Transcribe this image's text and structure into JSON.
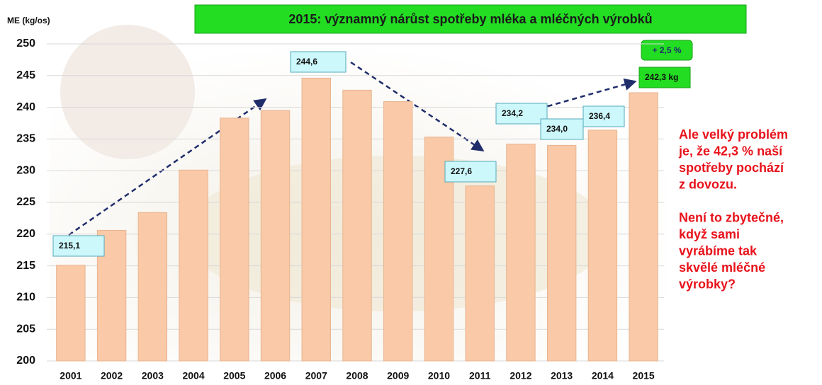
{
  "chart_data": {
    "type": "bar",
    "title": "2015:  významný nárůst spotřeby mléka a mléčných výrobků",
    "y_label": "ME (kg/os)",
    "categories": [
      "2001",
      "2002",
      "2003",
      "2004",
      "2005",
      "2006",
      "2007",
      "2008",
      "2009",
      "2010",
      "2011",
      "2012",
      "2013",
      "2014",
      "2015"
    ],
    "values": [
      215.1,
      220.6,
      223.4,
      230.1,
      238.3,
      239.5,
      244.6,
      242.7,
      240.9,
      235.3,
      227.6,
      234.2,
      234.0,
      236.4,
      242.3
    ],
    "value_labels": [
      "215,1",
      null,
      null,
      null,
      null,
      null,
      "244,6",
      null,
      null,
      null,
      "227,6",
      "234,2",
      "234,0",
      "236,4",
      "242,3 kg"
    ],
    "color": "#f9c9a8",
    "ylim": [
      200,
      250
    ],
    "yticks": [
      200,
      205,
      210,
      215,
      220,
      225,
      230,
      235,
      240,
      245,
      250
    ],
    "grid": true,
    "annotation": "+ 2,5 %",
    "note": [
      "Ale velký problém",
      "je, že 42,3 % naší",
      "spotřeby pochází",
      "z dovozu.",
      "",
      "Není to zbytečné,",
      "když sami",
      "vyrábíme tak",
      "skvělé mléčné",
      "výrobky?"
    ]
  }
}
